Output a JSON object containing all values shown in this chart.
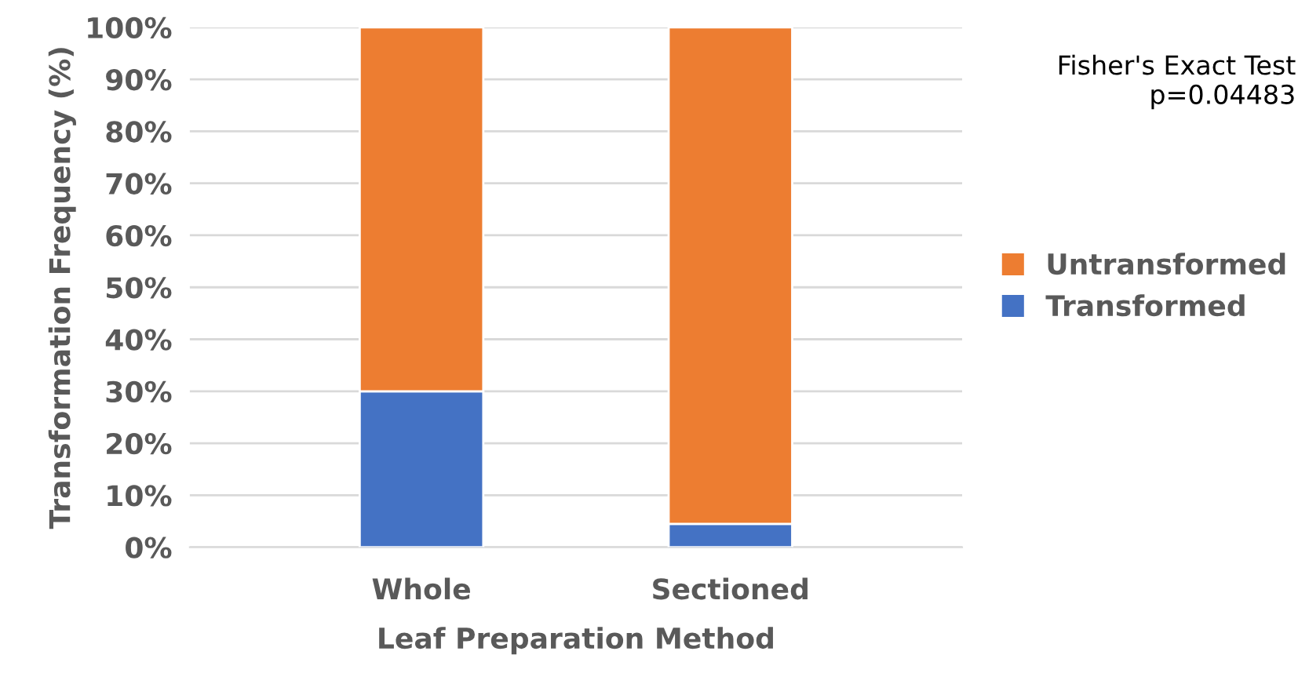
{
  "chart_data": {
    "type": "bar",
    "stacked": true,
    "xlabel": "Leaf Preparation Method",
    "ylabel": "Transformation Frequency (%)",
    "categories": [
      "Whole",
      "Sectioned"
    ],
    "series": [
      {
        "name": "Transformed",
        "color": "#4472c4",
        "values": [
          30,
          4.5
        ]
      },
      {
        "name": "Untransformed",
        "color": "#ed7d31",
        "values": [
          70,
          95.5
        ]
      }
    ],
    "ylim": [
      0,
      100
    ],
    "yticks": [
      {
        "value": 0,
        "label": "0%"
      },
      {
        "value": 10,
        "label": "10%"
      },
      {
        "value": 20,
        "label": "20%"
      },
      {
        "value": 30,
        "label": "30%"
      },
      {
        "value": 40,
        "label": "40%"
      },
      {
        "value": 50,
        "label": "50%"
      },
      {
        "value": 60,
        "label": "60%"
      },
      {
        "value": 70,
        "label": "70%"
      },
      {
        "value": 80,
        "label": "80%"
      },
      {
        "value": 90,
        "label": "90%"
      },
      {
        "value": 100,
        "label": "100%"
      }
    ],
    "grid": "y",
    "legend": "right",
    "annotations": [
      "Fisher's Exact Test\np=0.04483"
    ]
  }
}
